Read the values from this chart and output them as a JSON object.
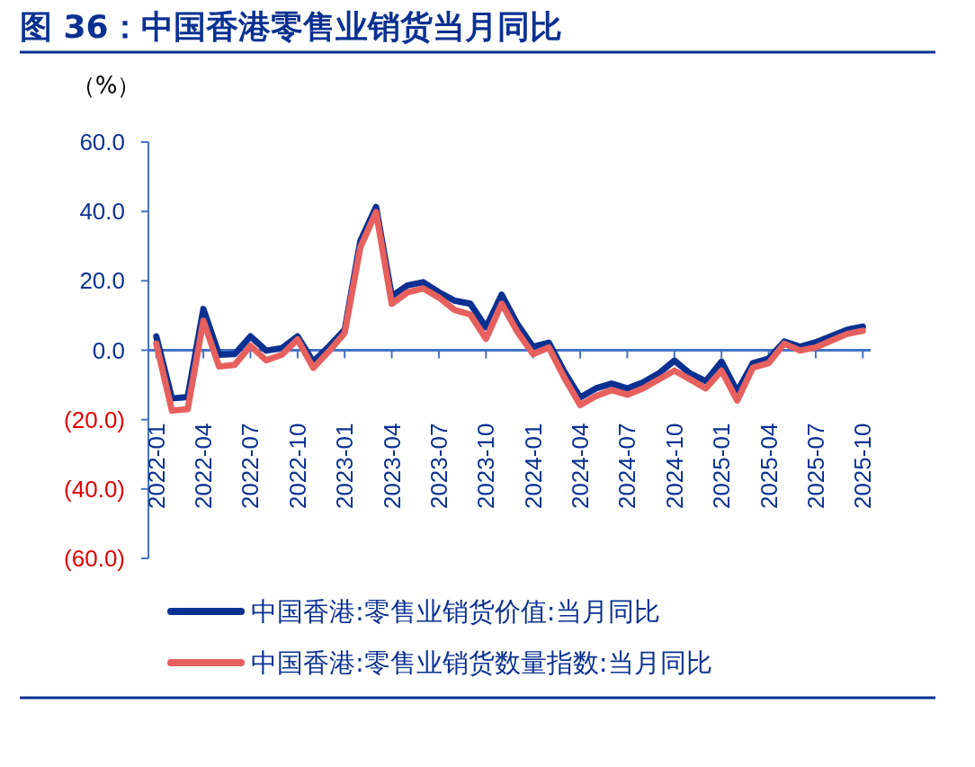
{
  "chart_data": {
    "type": "line",
    "title": "图 36：中国香港零售业销货当月同比",
    "ylabel": "（%）",
    "categories": [
      "2022-01",
      null,
      null,
      "2022-04",
      null,
      null,
      "2022-07",
      null,
      null,
      "2022-10",
      null,
      null,
      "2023-01",
      null,
      null,
      "2023-04",
      null,
      null,
      "2023-07",
      null,
      null,
      "2023-10",
      null,
      null,
      "2024-01",
      null,
      null,
      "2024-04",
      null,
      null,
      "2024-07",
      null,
      null,
      "2024-10",
      null,
      null,
      "2025-01",
      null,
      null,
      "2025-04",
      null,
      null,
      "2025-07",
      null,
      null,
      "2025-10"
    ],
    "series": [
      {
        "name": "中国香港:零售业销货价值:当月同比",
        "color": "#0a3192",
        "values": [
          4.0,
          -13.9,
          -13.5,
          11.9,
          -1.3,
          -1.1,
          4.0,
          -0.1,
          0.6,
          4.0,
          -3.3,
          1.1,
          5.9,
          31.5,
          41.3,
          15.6,
          18.7,
          19.6,
          16.7,
          14.3,
          13.4,
          6.6,
          16.0,
          7.5,
          1.0,
          2.2,
          -6.3,
          -13.6,
          -11.0,
          -9.6,
          -11.0,
          -9.3,
          -6.7,
          -3.0,
          -6.7,
          -8.9,
          -3.3,
          -11.9,
          -3.7,
          -2.4,
          2.5,
          1.0,
          2.3,
          4.1,
          5.9,
          6.8
        ]
      },
      {
        "name": "中国香港:零售业销货数量指数:当月同比",
        "color": "#e6605e",
        "values": [
          1.9,
          -17.4,
          -17.0,
          8.5,
          -4.7,
          -4.2,
          1.3,
          -2.9,
          -1.3,
          3.1,
          -5.1,
          -0.3,
          5.0,
          29.7,
          39.8,
          13.4,
          16.7,
          17.8,
          15.2,
          11.6,
          10.3,
          3.3,
          13.4,
          5.3,
          -1.1,
          0.8,
          -8.0,
          -15.8,
          -13.2,
          -11.5,
          -12.8,
          -11.0,
          -8.4,
          -5.9,
          -8.4,
          -11.0,
          -5.9,
          -14.5,
          -5.0,
          -3.7,
          1.9,
          -0.1,
          0.8,
          2.8,
          4.7,
          5.6
        ]
      }
    ],
    "ylim": [
      -60,
      60
    ],
    "yticks": [
      {
        "value": -60,
        "label": "(60.0)"
      },
      {
        "value": -40,
        "label": "(40.0)"
      },
      {
        "value": -20,
        "label": "(20.0)"
      },
      {
        "value": 0,
        "label": "0.0"
      },
      {
        "value": 20,
        "label": "20.0"
      },
      {
        "value": 40,
        "label": "40.0"
      },
      {
        "value": 60,
        "label": "60.0"
      }
    ],
    "ref_lines": [
      {
        "axis": "y",
        "value": 0,
        "color": "#4472c4"
      }
    ],
    "legend": "bottom",
    "grid": false,
    "marker": "none",
    "line_style": "solid"
  }
}
